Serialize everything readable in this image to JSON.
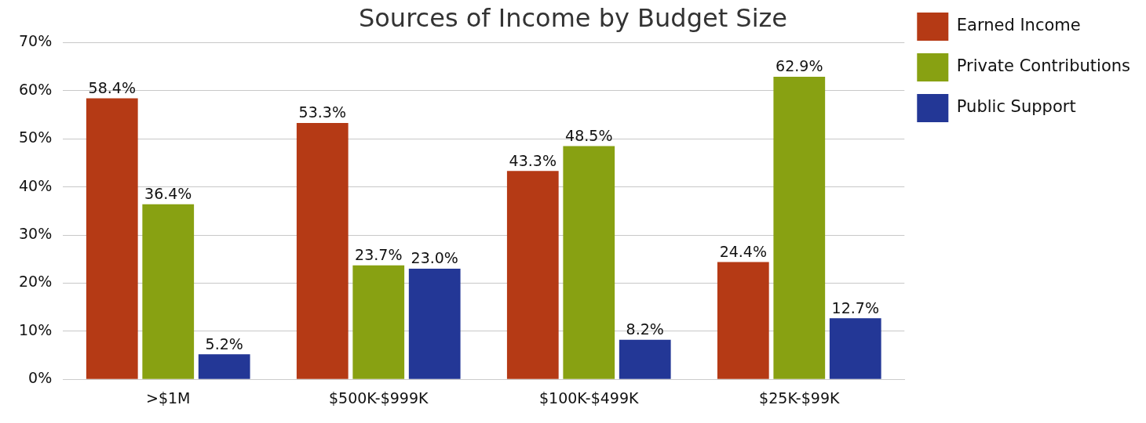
{
  "chart_data": {
    "type": "bar",
    "title": "Sources of Income by Budget Size",
    "categories": [
      ">$1M",
      "$500K-$999K",
      "$100K-$499K",
      "$25K-$99K"
    ],
    "series": [
      {
        "name": "Earned Income",
        "color": "#b53a15",
        "values": [
          58.4,
          53.3,
          43.3,
          24.4
        ],
        "value_labels": [
          "58.4%",
          "53.3%",
          "43.3%",
          "24.4%"
        ]
      },
      {
        "name": "Private Contributions",
        "color": "#88a112",
        "values": [
          36.4,
          23.7,
          48.5,
          62.9
        ],
        "value_labels": [
          "36.4%",
          "23.7%",
          "48.5%",
          "62.9%"
        ]
      },
      {
        "name": "Public Support",
        "color": "#233796",
        "values": [
          5.2,
          23.0,
          8.2,
          12.7
        ],
        "value_labels": [
          "5.2%",
          "23.0%",
          "8.2%",
          "12.7%"
        ]
      }
    ],
    "ylim": [
      0,
      70
    ],
    "yticks": [
      {
        "value": 0,
        "label": "0%"
      },
      {
        "value": 10,
        "label": "10%"
      },
      {
        "value": 20,
        "label": "20%"
      },
      {
        "value": 30,
        "label": "30%"
      },
      {
        "value": 40,
        "label": "40%"
      },
      {
        "value": 50,
        "label": "50%"
      },
      {
        "value": 60,
        "label": "60%"
      },
      {
        "value": 70,
        "label": "70%"
      }
    ],
    "grid": "y",
    "legend": "top right"
  }
}
